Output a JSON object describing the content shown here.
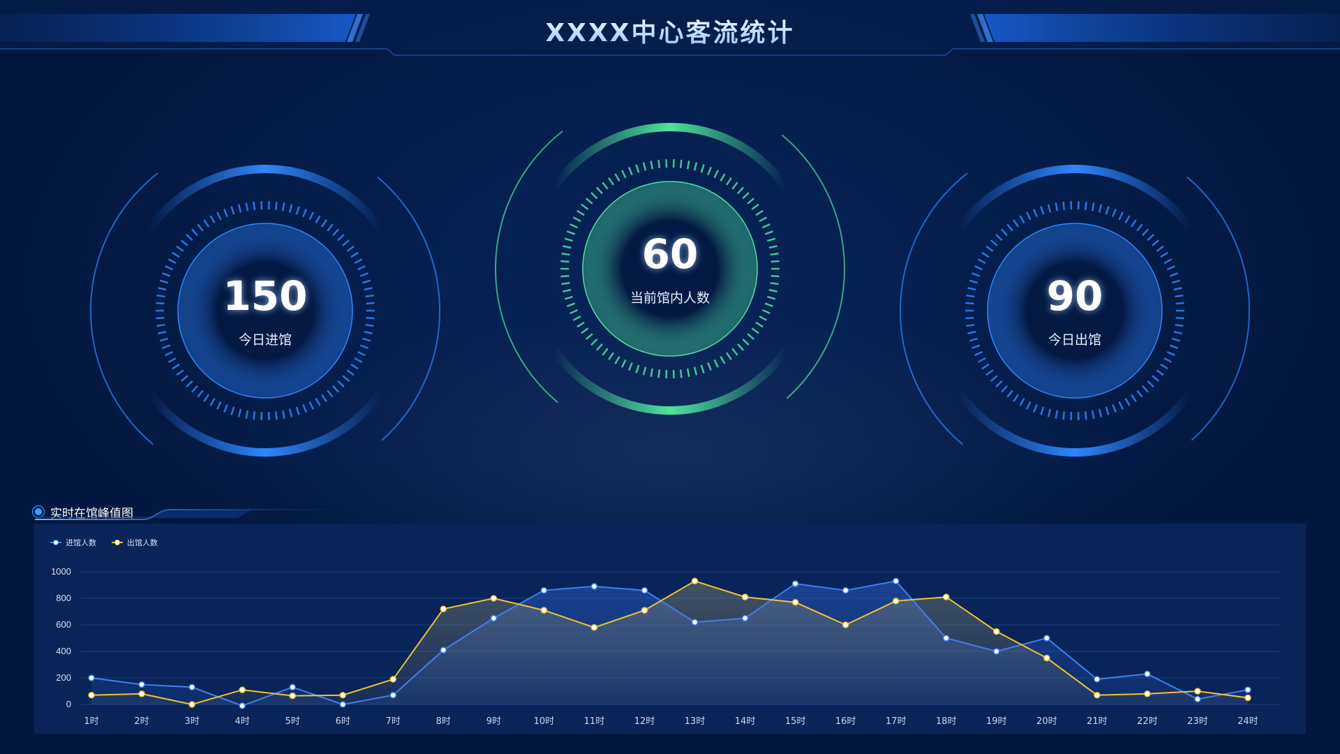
{
  "header": {
    "title": "XXXX中心客流统计"
  },
  "gauges": [
    {
      "value": "150",
      "label": "今日进馆",
      "theme": "blue"
    },
    {
      "value": "60",
      "label": "当前馆内人数",
      "theme": "green"
    },
    {
      "value": "90",
      "label": "今日出馆",
      "theme": "blue"
    }
  ],
  "colors": {
    "blue": "#2f86ff",
    "green": "#4fe39a",
    "series_in": "#3f7ff0",
    "series_out": "#f5c22e"
  },
  "section": {
    "title": "实时在馆峰值图",
    "icon": "radio-dot-icon"
  },
  "chart_data": {
    "type": "line",
    "legend": [
      "进馆人数",
      "出馆人数"
    ],
    "legend_position": "top-left",
    "categories": [
      "1时",
      "2时",
      "3时",
      "4时",
      "5时",
      "6时",
      "7时",
      "8时",
      "9时",
      "10时",
      "11时",
      "12时",
      "13时",
      "14时",
      "15时",
      "16时",
      "17时",
      "18时",
      "19时",
      "20时",
      "21时",
      "22时",
      "23时",
      "24时"
    ],
    "yticks": [
      "0",
      "200",
      "400",
      "600",
      "800",
      "1000"
    ],
    "ylim": [
      0,
      1000
    ],
    "grid": true,
    "area": true,
    "series": [
      {
        "name": "进馆人数",
        "values": [
          200,
          150,
          130,
          -10,
          130,
          0,
          70,
          410,
          650,
          860,
          890,
          860,
          620,
          650,
          910,
          860,
          930,
          500,
          400,
          500,
          190,
          230,
          40,
          110
        ]
      },
      {
        "name": "出馆人数",
        "values": [
          70,
          80,
          0,
          110,
          65,
          70,
          190,
          720,
          800,
          710,
          580,
          710,
          930,
          810,
          770,
          600,
          780,
          810,
          550,
          350,
          70,
          80,
          100,
          50
        ]
      }
    ]
  }
}
